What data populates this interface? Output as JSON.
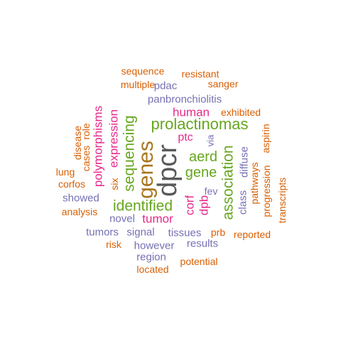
{
  "colors": {
    "dark_gray": "#595959",
    "purple": "#7570b3",
    "orange": "#d95f02",
    "magenta": "#e7298a",
    "green": "#66a61e",
    "brown": "#a6761d"
  },
  "words": [
    {
      "text": "dpcr",
      "color": "#595959"
    },
    {
      "text": "genes",
      "color": "#a6761d"
    },
    {
      "text": "prolactinomas",
      "color": "#66a61e"
    },
    {
      "text": "identified",
      "color": "#66a61e"
    },
    {
      "text": "sequencing",
      "color": "#66a61e"
    },
    {
      "text": "association",
      "color": "#66a61e"
    },
    {
      "text": "aerd",
      "color": "#66a61e"
    },
    {
      "text": "gene",
      "color": "#66a61e"
    },
    {
      "text": "expression",
      "color": "#e7298a"
    },
    {
      "text": "polymorphisms",
      "color": "#e7298a"
    },
    {
      "text": "human",
      "color": "#e7298a"
    },
    {
      "text": "tumor",
      "color": "#e7298a"
    },
    {
      "text": "corf",
      "color": "#e7298a"
    },
    {
      "text": "dpb",
      "color": "#e7298a"
    },
    {
      "text": "ptc",
      "color": "#e7298a"
    },
    {
      "text": "panbronchiolitis",
      "color": "#7570b3"
    },
    {
      "text": "pdac",
      "color": "#7570b3"
    },
    {
      "text": "class",
      "color": "#7570b3"
    },
    {
      "text": "diffuse",
      "color": "#7570b3"
    },
    {
      "text": "showed",
      "color": "#7570b3"
    },
    {
      "text": "novel",
      "color": "#7570b3"
    },
    {
      "text": "tumors",
      "color": "#7570b3"
    },
    {
      "text": "signal",
      "color": "#7570b3"
    },
    {
      "text": "tissues",
      "color": "#7570b3"
    },
    {
      "text": "however",
      "color": "#7570b3"
    },
    {
      "text": "results",
      "color": "#7570b3"
    },
    {
      "text": "region",
      "color": "#7570b3"
    },
    {
      "text": "fev",
      "color": "#7570b3"
    },
    {
      "text": "via",
      "color": "#7570b3"
    },
    {
      "text": "sequence",
      "color": "#d95f02"
    },
    {
      "text": "resistant",
      "color": "#d95f02"
    },
    {
      "text": "multiple",
      "color": "#d95f02"
    },
    {
      "text": "sanger",
      "color": "#d95f02"
    },
    {
      "text": "exhibited",
      "color": "#d95f02"
    },
    {
      "text": "disease",
      "color": "#d95f02"
    },
    {
      "text": "cases",
      "color": "#d95f02"
    },
    {
      "text": "role",
      "color": "#d95f02"
    },
    {
      "text": "six",
      "color": "#d95f02"
    },
    {
      "text": "lung",
      "color": "#d95f02"
    },
    {
      "text": "corfos",
      "color": "#d95f02"
    },
    {
      "text": "analysis",
      "color": "#d95f02"
    },
    {
      "text": "risk",
      "color": "#d95f02"
    },
    {
      "text": "located",
      "color": "#d95f02"
    },
    {
      "text": "potential",
      "color": "#d95f02"
    },
    {
      "text": "prb",
      "color": "#d95f02"
    },
    {
      "text": "reported",
      "color": "#d95f02"
    },
    {
      "text": "aspirin",
      "color": "#d95f02"
    },
    {
      "text": "pathways",
      "color": "#d95f02"
    },
    {
      "text": "progression",
      "color": "#d95f02"
    },
    {
      "text": "transcripts",
      "color": "#d95f02"
    }
  ]
}
